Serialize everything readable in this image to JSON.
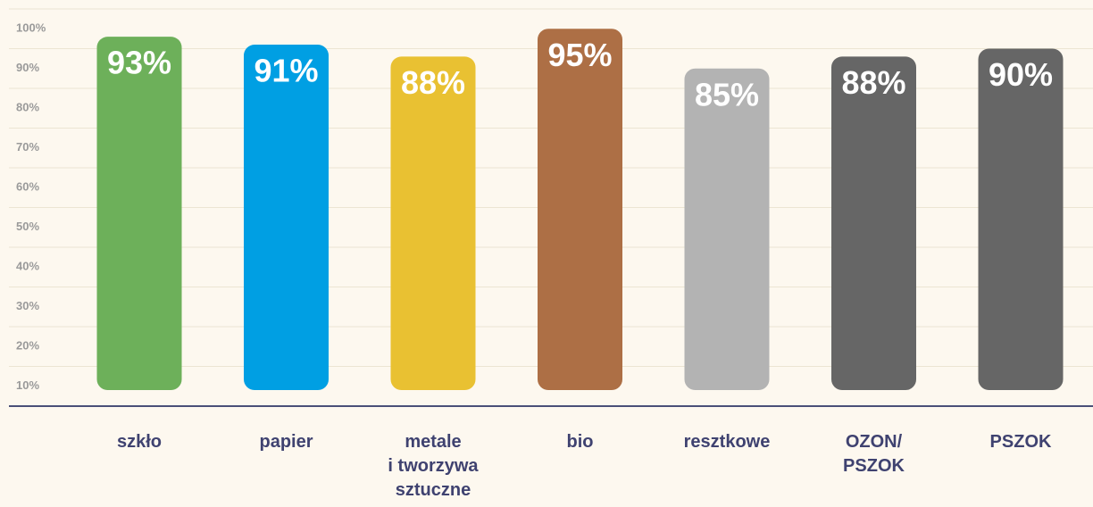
{
  "chart_data": {
    "type": "bar",
    "categories": [
      "szkło",
      "papier",
      "metale\ni tworzywa\nsztuczne",
      "bio",
      "resztkowe",
      "OZON/\nPSZOK",
      "PSZOK"
    ],
    "values": [
      93,
      91,
      88,
      95,
      85,
      88,
      90
    ],
    "value_labels": [
      "93%",
      "91%",
      "88%",
      "95%",
      "85%",
      "88%",
      "90%"
    ],
    "colors": [
      "#6db05a",
      "#009fe3",
      "#e9c132",
      "#ad6f45",
      "#b3b3b3",
      "#666666",
      "#666666"
    ],
    "ylim": [
      0,
      100
    ],
    "yticks": [
      {
        "value": 10,
        "label": "10%"
      },
      {
        "value": 20,
        "label": "20%"
      },
      {
        "value": 30,
        "label": "30%"
      },
      {
        "value": 40,
        "label": "40%"
      },
      {
        "value": 50,
        "label": "50%"
      },
      {
        "value": 60,
        "label": "60%"
      },
      {
        "value": 70,
        "label": "70%"
      },
      {
        "value": 80,
        "label": "80%"
      },
      {
        "value": 90,
        "label": "90%"
      },
      {
        "value": 100,
        "label": "100%"
      }
    ],
    "grid": true
  }
}
